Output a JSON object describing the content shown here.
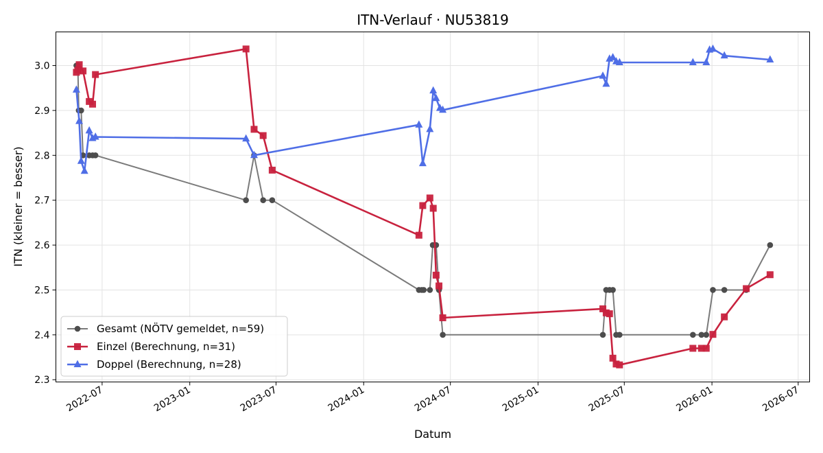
{
  "chart_data": {
    "type": "line",
    "title": "ITN-Verlauf · NU53819",
    "xlabel": "Datum",
    "ylabel": "ITN  (kleiner = besser)",
    "x_type": "date",
    "xlim": [
      "2022-03-26",
      "2026-07-25"
    ],
    "ylim": [
      2.295,
      3.075
    ],
    "xticks": [
      "2022-07-01",
      "2023-01-01",
      "2023-07-01",
      "2024-01-01",
      "2024-07-01",
      "2025-01-01",
      "2025-07-01",
      "2026-01-01",
      "2026-07-01"
    ],
    "xtick_labels": [
      "2022-07",
      "2023-01",
      "2023-07",
      "2024-01",
      "2024-07",
      "2025-01",
      "2025-07",
      "2026-01",
      "2026-07"
    ],
    "yticks": [
      2.3,
      2.4,
      2.5,
      2.6,
      2.7,
      2.8,
      2.9,
      3.0
    ],
    "ytick_labels": [
      "2.3",
      "2.4",
      "2.5",
      "2.6",
      "2.7",
      "2.8",
      "2.9",
      "3.0"
    ],
    "grid": true,
    "legend_position": "lower-left",
    "series": [
      {
        "name": "Gesamt (NÖTV gemeldet, n=59)",
        "color": "#4d4d4d",
        "line_color": "#7a7a7a",
        "marker": "circle",
        "points": [
          [
            "2022-05-08",
            3.0
          ],
          [
            "2022-05-11",
            3.0
          ],
          [
            "2022-05-13",
            2.9
          ],
          [
            "2022-05-18",
            2.9
          ],
          [
            "2022-05-22",
            2.8
          ],
          [
            "2022-06-04",
            2.8
          ],
          [
            "2022-06-11",
            2.8
          ],
          [
            "2022-06-17",
            2.8
          ],
          [
            "2023-04-29",
            2.7
          ],
          [
            "2023-05-16",
            2.8
          ],
          [
            "2023-06-04",
            2.7
          ],
          [
            "2023-06-23",
            2.7
          ],
          [
            "2024-04-26",
            2.5
          ],
          [
            "2024-05-02",
            2.5
          ],
          [
            "2024-05-06",
            2.5
          ],
          [
            "2024-05-19",
            2.5
          ],
          [
            "2024-05-25",
            2.6
          ],
          [
            "2024-06-01",
            2.6
          ],
          [
            "2024-06-07",
            2.5
          ],
          [
            "2024-06-15",
            2.4
          ],
          [
            "2025-05-17",
            2.4
          ],
          [
            "2025-05-24",
            2.5
          ],
          [
            "2025-05-31",
            2.5
          ],
          [
            "2025-06-07",
            2.5
          ],
          [
            "2025-06-14",
            2.4
          ],
          [
            "2025-06-21",
            2.4
          ],
          [
            "2025-11-22",
            2.4
          ],
          [
            "2025-12-10",
            2.4
          ],
          [
            "2025-12-20",
            2.4
          ],
          [
            "2026-01-03",
            2.5
          ],
          [
            "2026-01-27",
            2.5
          ],
          [
            "2026-03-14",
            2.5
          ],
          [
            "2026-05-03",
            2.6
          ]
        ]
      },
      {
        "name": "Einzel (Berechnung, n=31)",
        "color": "#c8223e",
        "line_color": "#c8223e",
        "marker": "square",
        "points": [
          [
            "2022-05-08",
            2.985
          ],
          [
            "2022-05-11",
            2.99
          ],
          [
            "2022-05-14",
            3.002
          ],
          [
            "2022-05-22",
            2.988
          ],
          [
            "2022-06-04",
            2.92
          ],
          [
            "2022-06-11",
            2.914
          ],
          [
            "2022-06-17",
            2.98
          ],
          [
            "2023-04-29",
            3.037
          ],
          [
            "2023-05-16",
            2.858
          ],
          [
            "2023-06-04",
            2.844
          ],
          [
            "2023-06-23",
            2.767
          ],
          [
            "2024-04-26",
            2.622
          ],
          [
            "2024-05-04",
            2.688
          ],
          [
            "2024-05-19",
            2.705
          ],
          [
            "2024-05-26",
            2.682
          ],
          [
            "2024-06-01",
            2.533
          ],
          [
            "2024-06-07",
            2.509
          ],
          [
            "2024-06-15",
            2.438
          ],
          [
            "2025-05-17",
            2.458
          ],
          [
            "2025-05-24",
            2.449
          ],
          [
            "2025-05-31",
            2.447
          ],
          [
            "2025-06-07",
            2.348
          ],
          [
            "2025-06-14",
            2.335
          ],
          [
            "2025-06-21",
            2.333
          ],
          [
            "2025-11-22",
            2.37
          ],
          [
            "2025-12-10",
            2.37
          ],
          [
            "2025-12-20",
            2.37
          ],
          [
            "2026-01-03",
            2.401
          ],
          [
            "2026-01-27",
            2.44
          ],
          [
            "2026-03-14",
            2.503
          ],
          [
            "2026-05-03",
            2.534
          ]
        ]
      },
      {
        "name": "Doppel (Berechnung, n=28)",
        "color": "#4f6ee6",
        "line_color": "#4f6ee6",
        "marker": "triangle",
        "points": [
          [
            "2022-05-08",
            2.946
          ],
          [
            "2022-05-14",
            2.876
          ],
          [
            "2022-05-18",
            2.787
          ],
          [
            "2022-05-25",
            2.765
          ],
          [
            "2022-06-04",
            2.855
          ],
          [
            "2022-06-11",
            2.838
          ],
          [
            "2022-06-17",
            2.841
          ],
          [
            "2023-04-29",
            2.837
          ],
          [
            "2023-05-16",
            2.8
          ],
          [
            "2024-04-26",
            2.868
          ],
          [
            "2024-05-04",
            2.782
          ],
          [
            "2024-05-19",
            2.858
          ],
          [
            "2024-05-26",
            2.944
          ],
          [
            "2024-06-01",
            2.927
          ],
          [
            "2024-06-09",
            2.905
          ],
          [
            "2024-06-15",
            2.901
          ],
          [
            "2025-05-17",
            2.977
          ],
          [
            "2025-05-24",
            2.959
          ],
          [
            "2025-05-31",
            3.015
          ],
          [
            "2025-06-07",
            3.018
          ],
          [
            "2025-06-14",
            3.009
          ],
          [
            "2025-06-21",
            3.007
          ],
          [
            "2025-11-22",
            3.007
          ],
          [
            "2025-12-20",
            3.007
          ],
          [
            "2025-12-27",
            3.035
          ],
          [
            "2026-01-03",
            3.037
          ],
          [
            "2026-01-27",
            3.022
          ],
          [
            "2026-05-03",
            3.013
          ]
        ]
      }
    ]
  }
}
